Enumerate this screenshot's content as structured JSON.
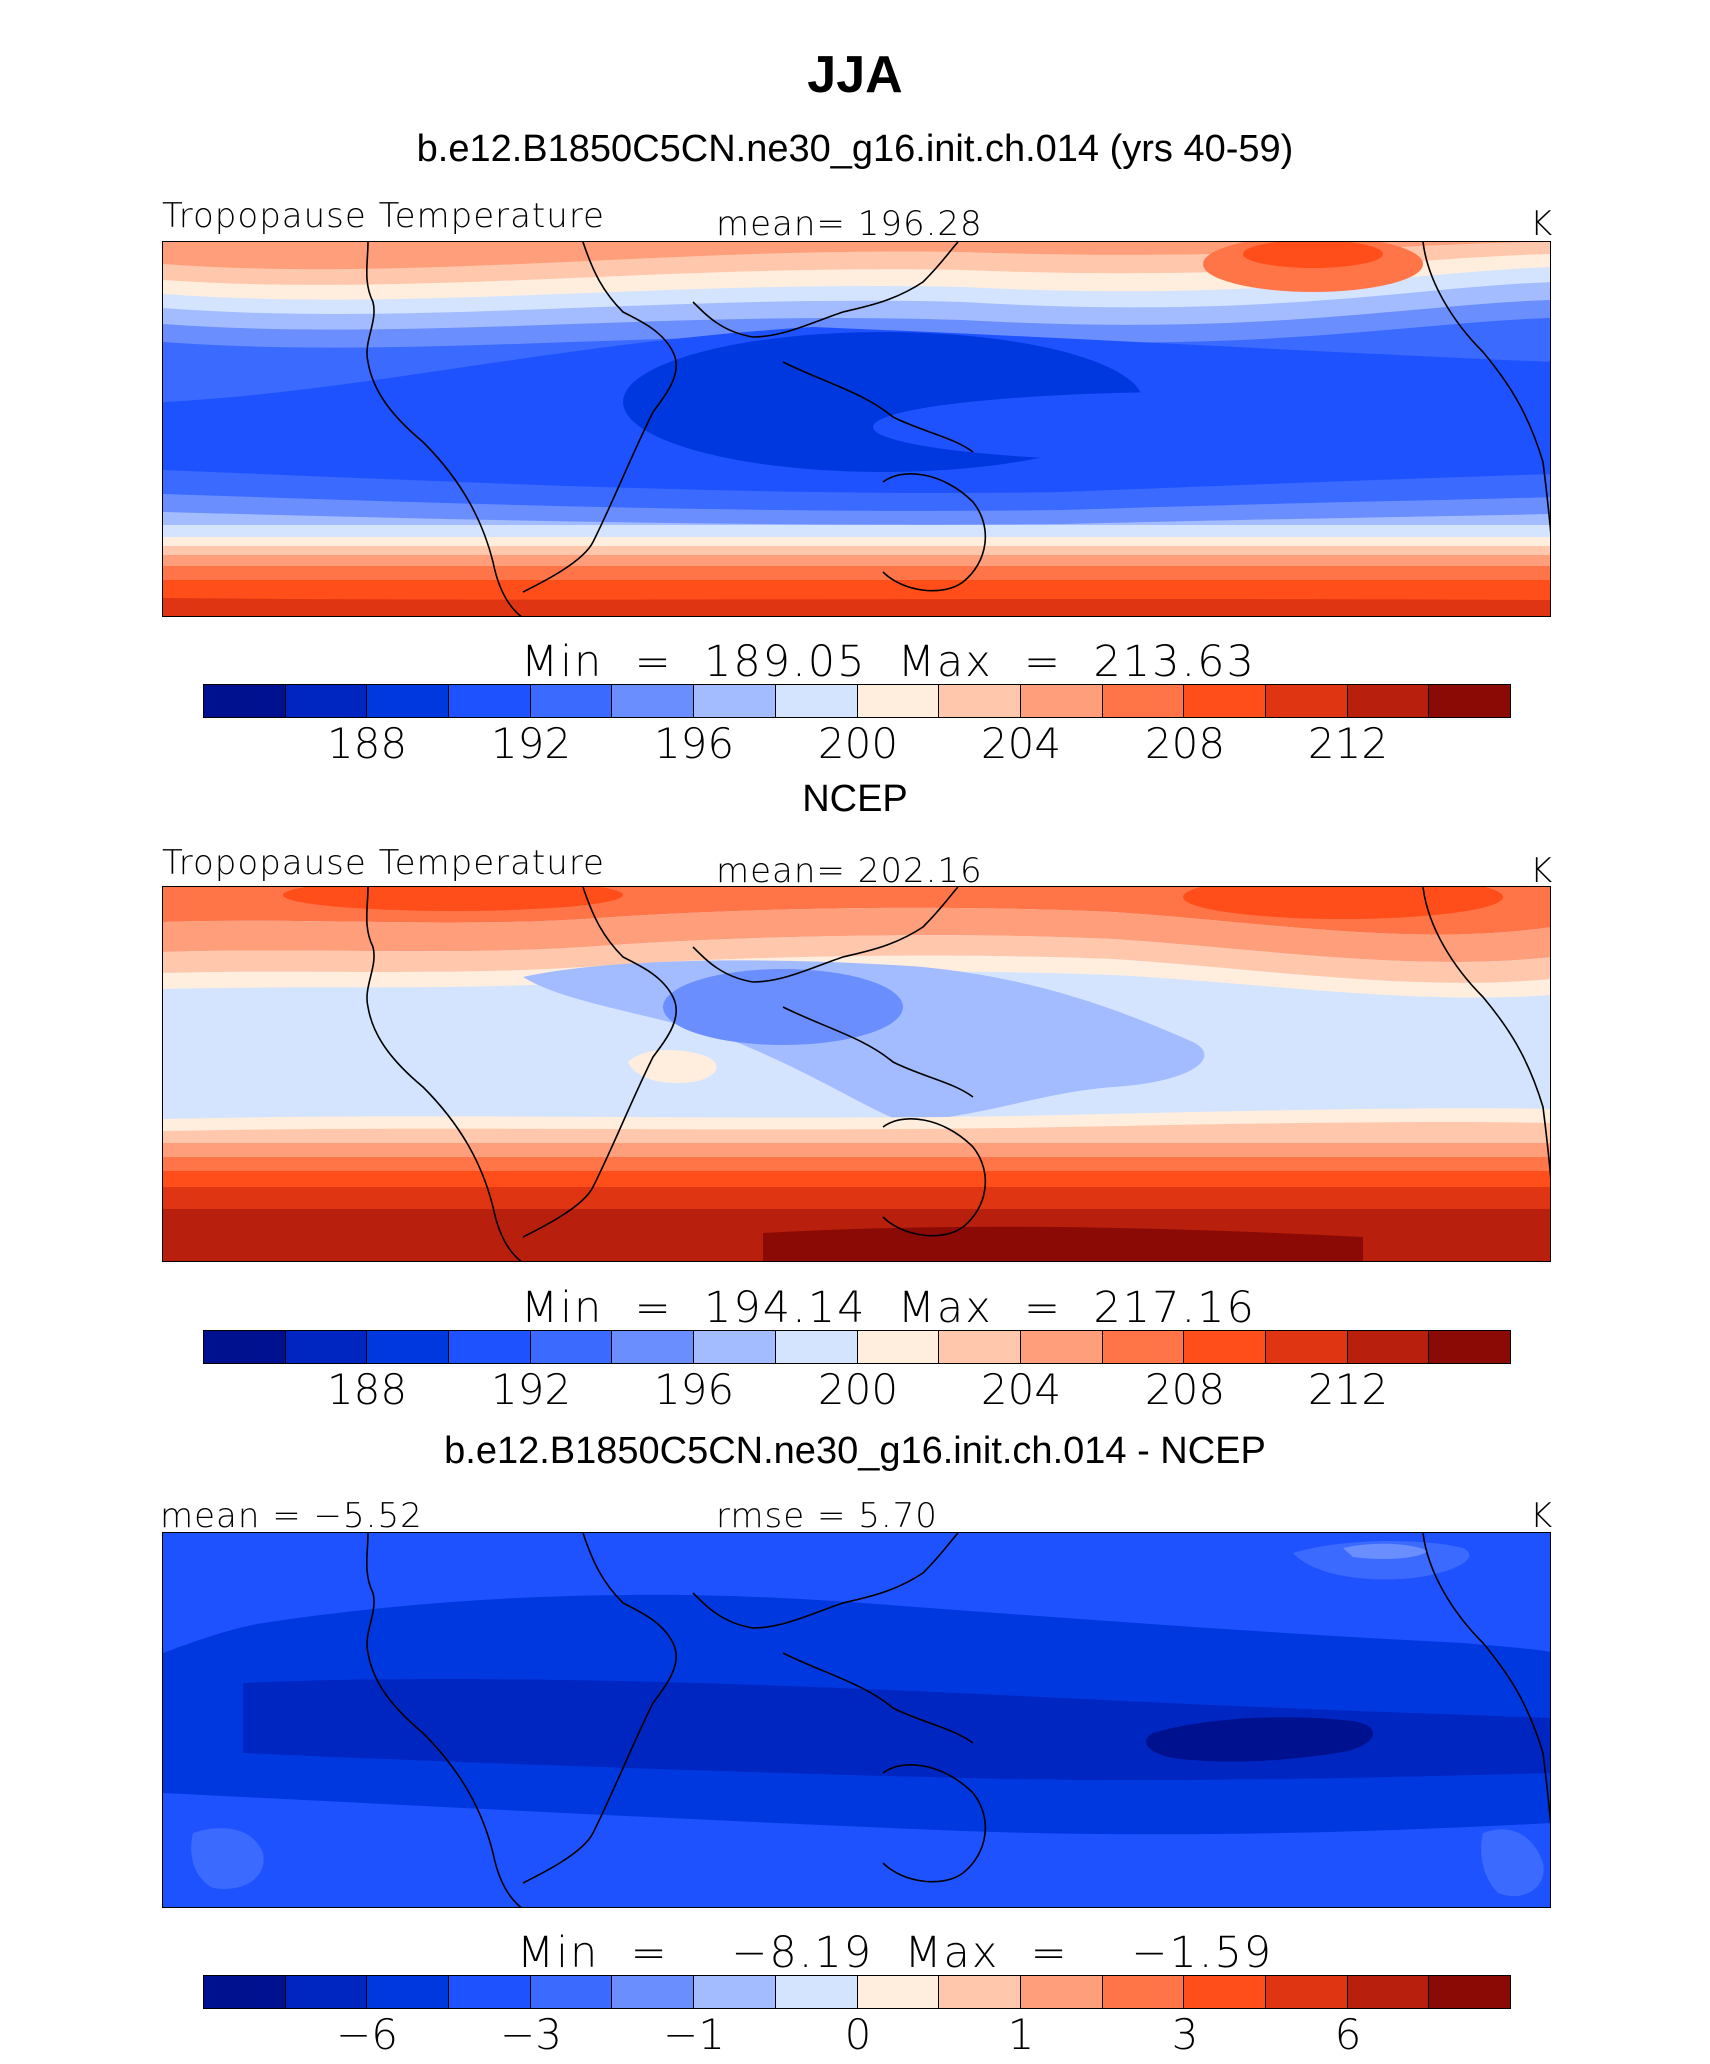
{
  "page": {
    "title": "JJA"
  },
  "palette": [
    "#00118f",
    "#0026c2",
    "#0038e0",
    "#1f52ff",
    "#3a6aff",
    "#6b8eff",
    "#a3bcff",
    "#d4e4ff",
    "#ffeedd",
    "#ffc8ad",
    "#ff9e7a",
    "#ff7548",
    "#ff4e1a",
    "#e03512",
    "#b81f0c",
    "#8b0a05"
  ],
  "chart_data": [
    {
      "type": "heatmap",
      "subtitle": "b.e12.B1850C5CN.ne30_g16.init.ch.014 (yrs 40-59)",
      "left_label": "Tropopause Temperature",
      "center_label": "mean=  196.28",
      "units": "K",
      "min_max": "Min  =  189.05  Max  =  213.63",
      "min": 189.05,
      "max": 213.63,
      "mean": 196.28,
      "contour_levels": [
        186,
        188,
        190,
        192,
        194,
        196,
        198,
        200,
        202,
        204,
        206,
        208,
        210,
        212,
        214
      ],
      "colorbar_labels": [
        "188",
        "192",
        "196",
        "200",
        "204",
        "208",
        "212"
      ]
    },
    {
      "type": "heatmap",
      "subtitle": "NCEP",
      "left_label": "Tropopause Temperature",
      "center_label": "mean=  202.16",
      "units": "K",
      "min_max": "Min  =  194.14  Max  =  217.16",
      "min": 194.14,
      "max": 217.16,
      "mean": 202.16,
      "contour_levels": [
        186,
        188,
        190,
        192,
        194,
        196,
        198,
        200,
        202,
        204,
        206,
        208,
        210,
        212,
        214
      ],
      "colorbar_labels": [
        "188",
        "192",
        "196",
        "200",
        "204",
        "208",
        "212"
      ]
    },
    {
      "type": "heatmap",
      "subtitle": "b.e12.B1850C5CN.ne30_g16.init.ch.014 - NCEP",
      "left_label": "mean =   −5.52",
      "center_label": "rmse =     5.70",
      "units": "K",
      "min_max": "Min  =    −8.19  Max  =    −1.59",
      "min": -8.19,
      "max": -1.59,
      "mean": -5.52,
      "rmse": 5.7,
      "contour_levels": [
        -8,
        -6,
        -4,
        -3,
        -2,
        -1,
        -0.5,
        0,
        0.5,
        1,
        2,
        3,
        4,
        6,
        8
      ],
      "colorbar_labels": [
        "−6",
        "−3",
        "−1",
        "0",
        "1",
        "3",
        "6"
      ]
    }
  ]
}
